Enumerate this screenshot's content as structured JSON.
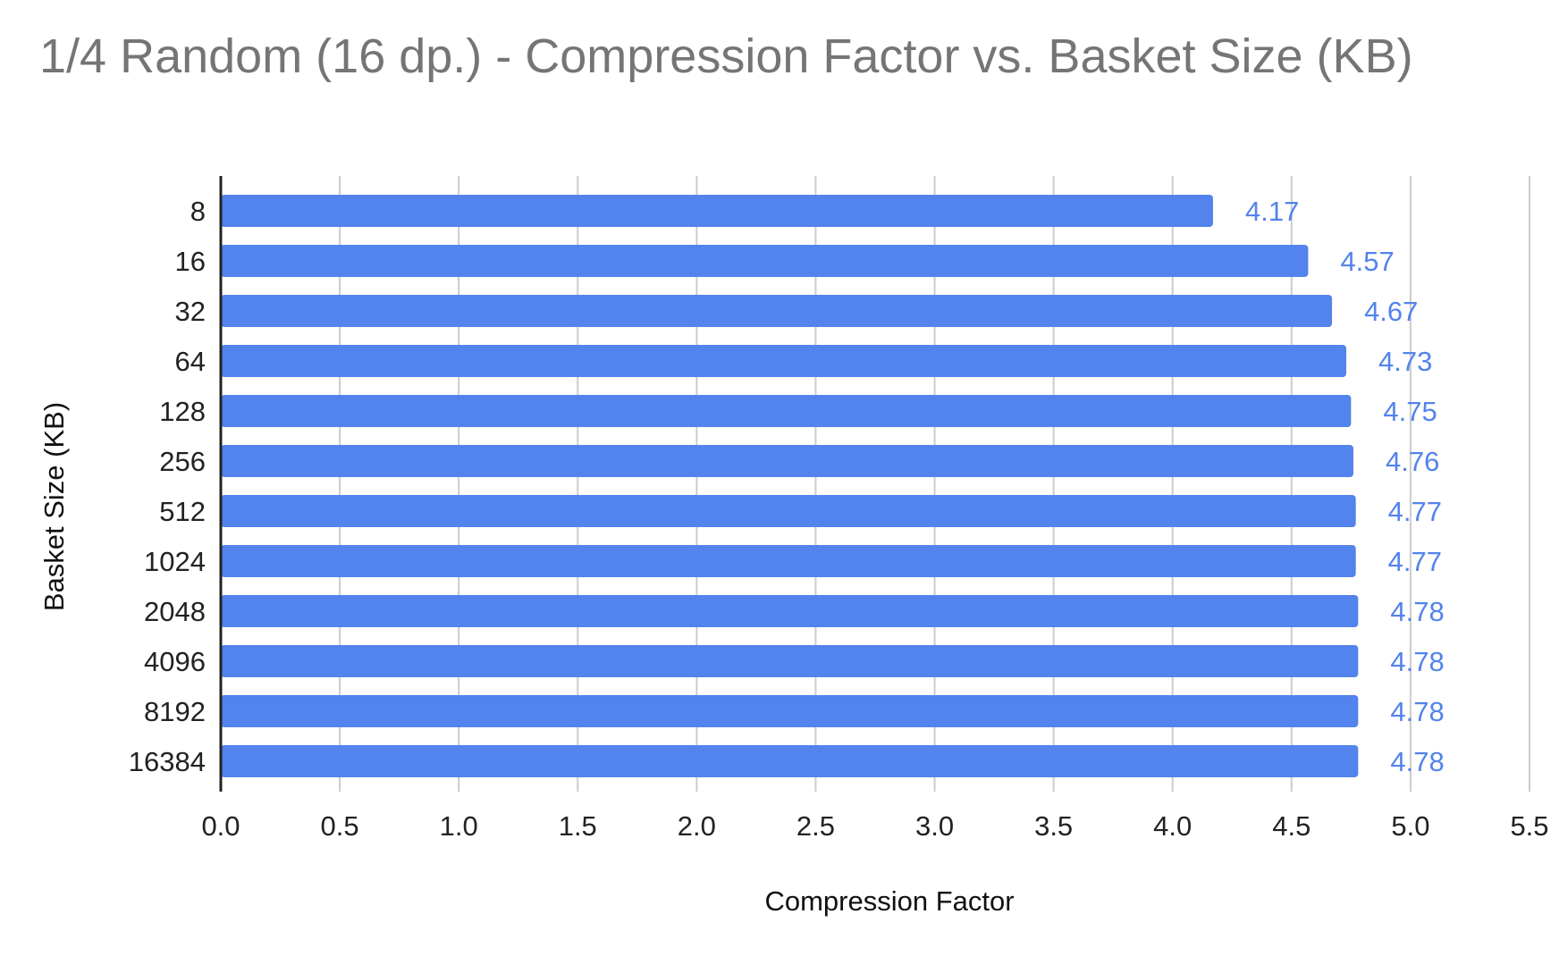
{
  "chart_data": {
    "type": "bar",
    "orientation": "horizontal",
    "title": "1/4 Random (16 dp.) - Compression Factor vs. Basket Size (KB)",
    "xlabel": "Compression Factor",
    "ylabel": "Basket Size (KB)",
    "categories": [
      "8",
      "16",
      "32",
      "64",
      "128",
      "256",
      "512",
      "1024",
      "2048",
      "4096",
      "8192",
      "16384"
    ],
    "values": [
      4.17,
      4.57,
      4.67,
      4.73,
      4.75,
      4.76,
      4.77,
      4.77,
      4.78,
      4.78,
      4.78,
      4.78
    ],
    "data_labels": [
      "4.17",
      "4.57",
      "4.67",
      "4.73",
      "4.75",
      "4.76",
      "4.77",
      "4.77",
      "4.78",
      "4.78",
      "4.78",
      "4.78"
    ],
    "xlim": [
      0,
      5.5
    ],
    "xticks": [
      "0.0",
      "0.5",
      "1.0",
      "1.5",
      "2.0",
      "2.5",
      "3.0",
      "3.5",
      "4.0",
      "4.5",
      "5.0",
      "5.5"
    ],
    "grid": true,
    "legend": "none",
    "colors": {
      "bar": "#5383ec",
      "data_label": "#5383ec",
      "grid": "#cccccc",
      "axis": "#222222",
      "title": "#757575"
    }
  }
}
